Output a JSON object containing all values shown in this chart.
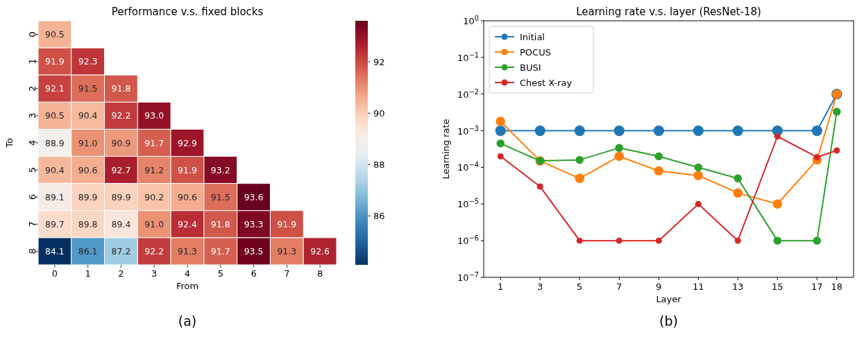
{
  "chart_data": [
    {
      "type": "heatmap",
      "title": "Performance v.s. fixed blocks",
      "xlabel": "From",
      "ylabel": "To",
      "categories": [
        "0",
        "1",
        "2",
        "3",
        "4",
        "5",
        "6",
        "7",
        "8"
      ],
      "y_categories": [
        "0",
        "1",
        "2",
        "3",
        "4",
        "5",
        "6",
        "7",
        "8"
      ],
      "cells": [
        [
          90.5,
          null,
          null,
          null,
          null,
          null,
          null,
          null,
          null
        ],
        [
          91.9,
          92.3,
          null,
          null,
          null,
          null,
          null,
          null,
          null
        ],
        [
          92.1,
          91.5,
          91.8,
          null,
          null,
          null,
          null,
          null,
          null
        ],
        [
          90.5,
          90.4,
          92.2,
          93.0,
          null,
          null,
          null,
          null,
          null
        ],
        [
          88.9,
          91.0,
          90.9,
          91.7,
          92.9,
          null,
          null,
          null,
          null
        ],
        [
          90.4,
          90.6,
          92.7,
          91.2,
          91.9,
          93.2,
          null,
          null,
          null
        ],
        [
          89.1,
          89.9,
          89.9,
          90.2,
          90.6,
          91.5,
          93.6,
          null,
          null
        ],
        [
          89.7,
          89.8,
          89.4,
          91.0,
          92.4,
          91.8,
          93.3,
          91.9,
          null
        ],
        [
          84.1,
          86.1,
          87.2,
          92.2,
          91.3,
          91.7,
          93.5,
          91.3,
          92.6
        ]
      ],
      "cell_labels": [
        [
          "90.5",
          null,
          null,
          null,
          null,
          null,
          null,
          null,
          null
        ],
        [
          "91.9",
          "92.3",
          null,
          null,
          null,
          null,
          null,
          null,
          null
        ],
        [
          "92.1",
          "91.5",
          "91.8",
          null,
          null,
          null,
          null,
          null,
          null
        ],
        [
          "90.5",
          "90.4",
          "92.2",
          "93.0",
          null,
          null,
          null,
          null,
          null
        ],
        [
          "88.9",
          "91.0",
          "90.9",
          "91.7",
          "92.9",
          null,
          null,
          null,
          null
        ],
        [
          "90.4",
          "90.6",
          "92.7",
          "91.2",
          "91.9",
          "93.2",
          null,
          null,
          null
        ],
        [
          "89.1",
          "89.9",
          "89.9",
          "90.2",
          "90.6",
          "91.5",
          "93.6",
          null,
          null
        ],
        [
          "89.7",
          "89.8",
          "89.4",
          "91.0",
          "92.4",
          "91.8",
          "93.3",
          "91.9",
          null
        ],
        [
          "84.1",
          "86.1",
          "87.2",
          "92.2",
          "91.3",
          "91.7",
          "93.5",
          "91.3",
          "92.6"
        ]
      ],
      "clim": [
        84.1,
        93.6
      ],
      "cticks": [
        86,
        88,
        90,
        92
      ],
      "annotations": [
        "(a)"
      ]
    },
    {
      "type": "line",
      "title": "Learning rate v.s. layer (ResNet-18)",
      "xlabel": "Layer",
      "ylabel": "Learning rate",
      "x": [
        1,
        3,
        5,
        7,
        9,
        11,
        13,
        15,
        17,
        18
      ],
      "xlim": [
        0.15,
        18.85
      ],
      "xticks": [
        1,
        3,
        5,
        7,
        9,
        11,
        13,
        15,
        17,
        18
      ],
      "log": true,
      "ylim": [
        1e-07,
        1
      ],
      "yticks": [
        {
          "value": 1e-07,
          "label": "10$^{−7}$"
        },
        {
          "value": 1e-06,
          "label": "10$^{−6}$"
        },
        {
          "value": 1e-05,
          "label": "10$^{−5}$"
        },
        {
          "value": 0.0001,
          "label": "10$^{−4}$"
        },
        {
          "value": 0.001,
          "label": "10$^{−3}$"
        },
        {
          "value": 0.01,
          "label": "10$^{−2}$"
        },
        {
          "value": 0.1,
          "label": "10$^{−1}$"
        },
        {
          "value": 1,
          "label": "10$^{0}$"
        }
      ],
      "marker": "circle",
      "legend": "top left",
      "grid": false,
      "annotations": [
        "(b)"
      ],
      "series": [
        {
          "name": "Initial",
          "color": "#1f77b4",
          "values": [
            0.001,
            0.001,
            0.001,
            0.001,
            0.001,
            0.001,
            0.001,
            0.001,
            0.001,
            0.01
          ]
        },
        {
          "name": "POCUS",
          "color": "#ff7f0e",
          "values": [
            0.0018,
            0.00015,
            5e-05,
            0.0002,
            8e-05,
            6e-05,
            2e-05,
            1e-05,
            0.00016,
            0.01
          ]
        },
        {
          "name": "BUSI",
          "color": "#2ca02c",
          "values": [
            0.00045,
            0.00015,
            0.00016,
            0.00034,
            0.0002,
            0.0001,
            5e-05,
            1e-06,
            1e-06,
            0.0033
          ]
        },
        {
          "name": "Chest X-ray",
          "color": "#d62728",
          "values": [
            0.0002,
            3e-05,
            1e-06,
            1e-06,
            1e-06,
            1e-05,
            1e-06,
            0.0007,
            0.00019,
            0.00029
          ]
        }
      ]
    }
  ]
}
